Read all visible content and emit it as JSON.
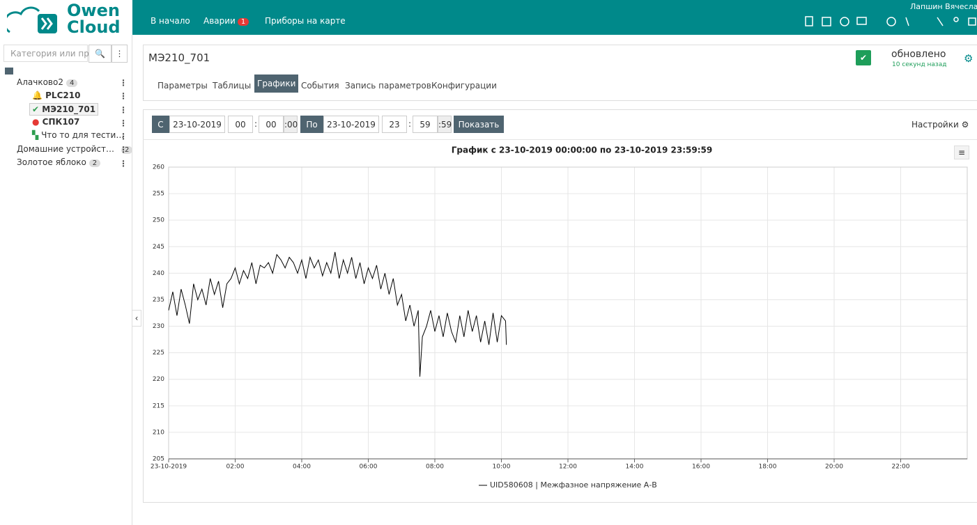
{
  "header": {
    "logo": [
      "Owen",
      "Cloud"
    ],
    "nav": [
      {
        "label": "В начало"
      },
      {
        "label": "Аварии",
        "badge": 1
      },
      {
        "label": "Приборы на карте"
      }
    ],
    "user": "Лапшин Вячеслав"
  },
  "sidebar": {
    "search_placeholder": "Категория или при",
    "tree": [
      {
        "label": "Алачково2",
        "count": 4,
        "children": [
          "PLC210",
          "МЭ210_701",
          "СПК107",
          "Что то для тести…"
        ]
      },
      {
        "label": "Домашние устройст…",
        "count": 2
      },
      {
        "label": "Золотое яблоко",
        "count": 2
      }
    ]
  },
  "device": {
    "title": "МЭ210_701",
    "status": "обновлено",
    "status_time": "10 секунд назад",
    "tabs": [
      "Параметры",
      "Таблицы",
      "Графики",
      "События",
      "Запись параметров",
      "Конфигурации"
    ],
    "active_tab": 2
  },
  "controls": {
    "from_label": "С",
    "from_date": "23-10-2019",
    "from_hour": "00",
    "sep1": ":",
    "from_min": "00",
    "from_sec": ":00",
    "to_label": "По",
    "to_date": "23-10-2019",
    "to_hour": "23",
    "sep2": ":",
    "to_min": "59",
    "to_sec": ":59",
    "show": "Показать",
    "settings": "Настройки"
  },
  "chart_data": {
    "type": "line",
    "title": "График с 23-10-2019 00:00:00 по 23-10-2019 23:59:59",
    "xlim": [
      0,
      24
    ],
    "xticks": [
      {
        "value": 0,
        "label": "23-10-2019"
      },
      {
        "value": 2,
        "label": "02:00"
      },
      {
        "value": 4,
        "label": "04:00"
      },
      {
        "value": 6,
        "label": "06:00"
      },
      {
        "value": 8,
        "label": "08:00"
      },
      {
        "value": 10,
        "label": "10:00"
      },
      {
        "value": 12,
        "label": "12:00"
      },
      {
        "value": 14,
        "label": "14:00"
      },
      {
        "value": 16,
        "label": "16:00"
      },
      {
        "value": 18,
        "label": "18:00"
      },
      {
        "value": 20,
        "label": "20:00"
      },
      {
        "value": 22,
        "label": "22:00"
      }
    ],
    "ylim": [
      205,
      260
    ],
    "yticks": [
      205,
      210,
      215,
      220,
      225,
      230,
      235,
      240,
      245,
      250,
      255,
      260
    ],
    "grid": true,
    "x": [
      0,
      0.125,
      0.25,
      0.375,
      0.5,
      0.625,
      0.75,
      0.875,
      1,
      1.125,
      1.25,
      1.375,
      1.5,
      1.625,
      1.75,
      1.875,
      2,
      2.125,
      2.25,
      2.375,
      2.5,
      2.625,
      2.75,
      2.875,
      3,
      3.125,
      3.25,
      3.375,
      3.5,
      3.625,
      3.75,
      3.875,
      4,
      4.125,
      4.25,
      4.375,
      4.5,
      4.625,
      4.75,
      4.875,
      5,
      5.125,
      5.25,
      5.375,
      5.5,
      5.625,
      5.75,
      5.875,
      6,
      6.125,
      6.25,
      6.375,
      6.5,
      6.625,
      6.75,
      6.875,
      7,
      7.125,
      7.25,
      7.375,
      7.5,
      7.55,
      7.625,
      7.75,
      7.875,
      8,
      8.125,
      8.25,
      8.375,
      8.5,
      8.625,
      8.75,
      8.875,
      9,
      9.125,
      9.25,
      9.375,
      9.5,
      9.625,
      9.75,
      9.875,
      10,
      10.125,
      10.15
    ],
    "series": [
      {
        "name": "UID580608 | Межфазное напряжение А-В",
        "color": "#000000",
        "values": [
          233,
          236.5,
          232,
          237,
          234,
          230.5,
          238,
          235,
          237,
          234,
          239,
          236,
          238.5,
          233.5,
          238,
          239,
          241,
          238,
          240.5,
          239,
          242,
          238,
          241.5,
          241,
          242,
          240,
          243.5,
          242.5,
          241,
          243,
          242,
          240,
          242.5,
          239,
          243,
          241,
          242.5,
          239.5,
          242,
          240,
          244,
          239,
          242.5,
          240,
          243,
          239,
          242,
          238,
          241,
          239,
          241.5,
          237,
          240,
          236,
          239,
          234,
          236,
          231,
          234,
          230,
          233,
          220.5,
          228,
          230,
          233,
          229,
          232,
          228,
          232.5,
          229,
          227,
          232,
          228,
          233,
          229,
          232,
          227,
          231,
          226.5,
          232.5,
          227,
          232,
          231,
          226.5
        ]
      }
    ]
  }
}
